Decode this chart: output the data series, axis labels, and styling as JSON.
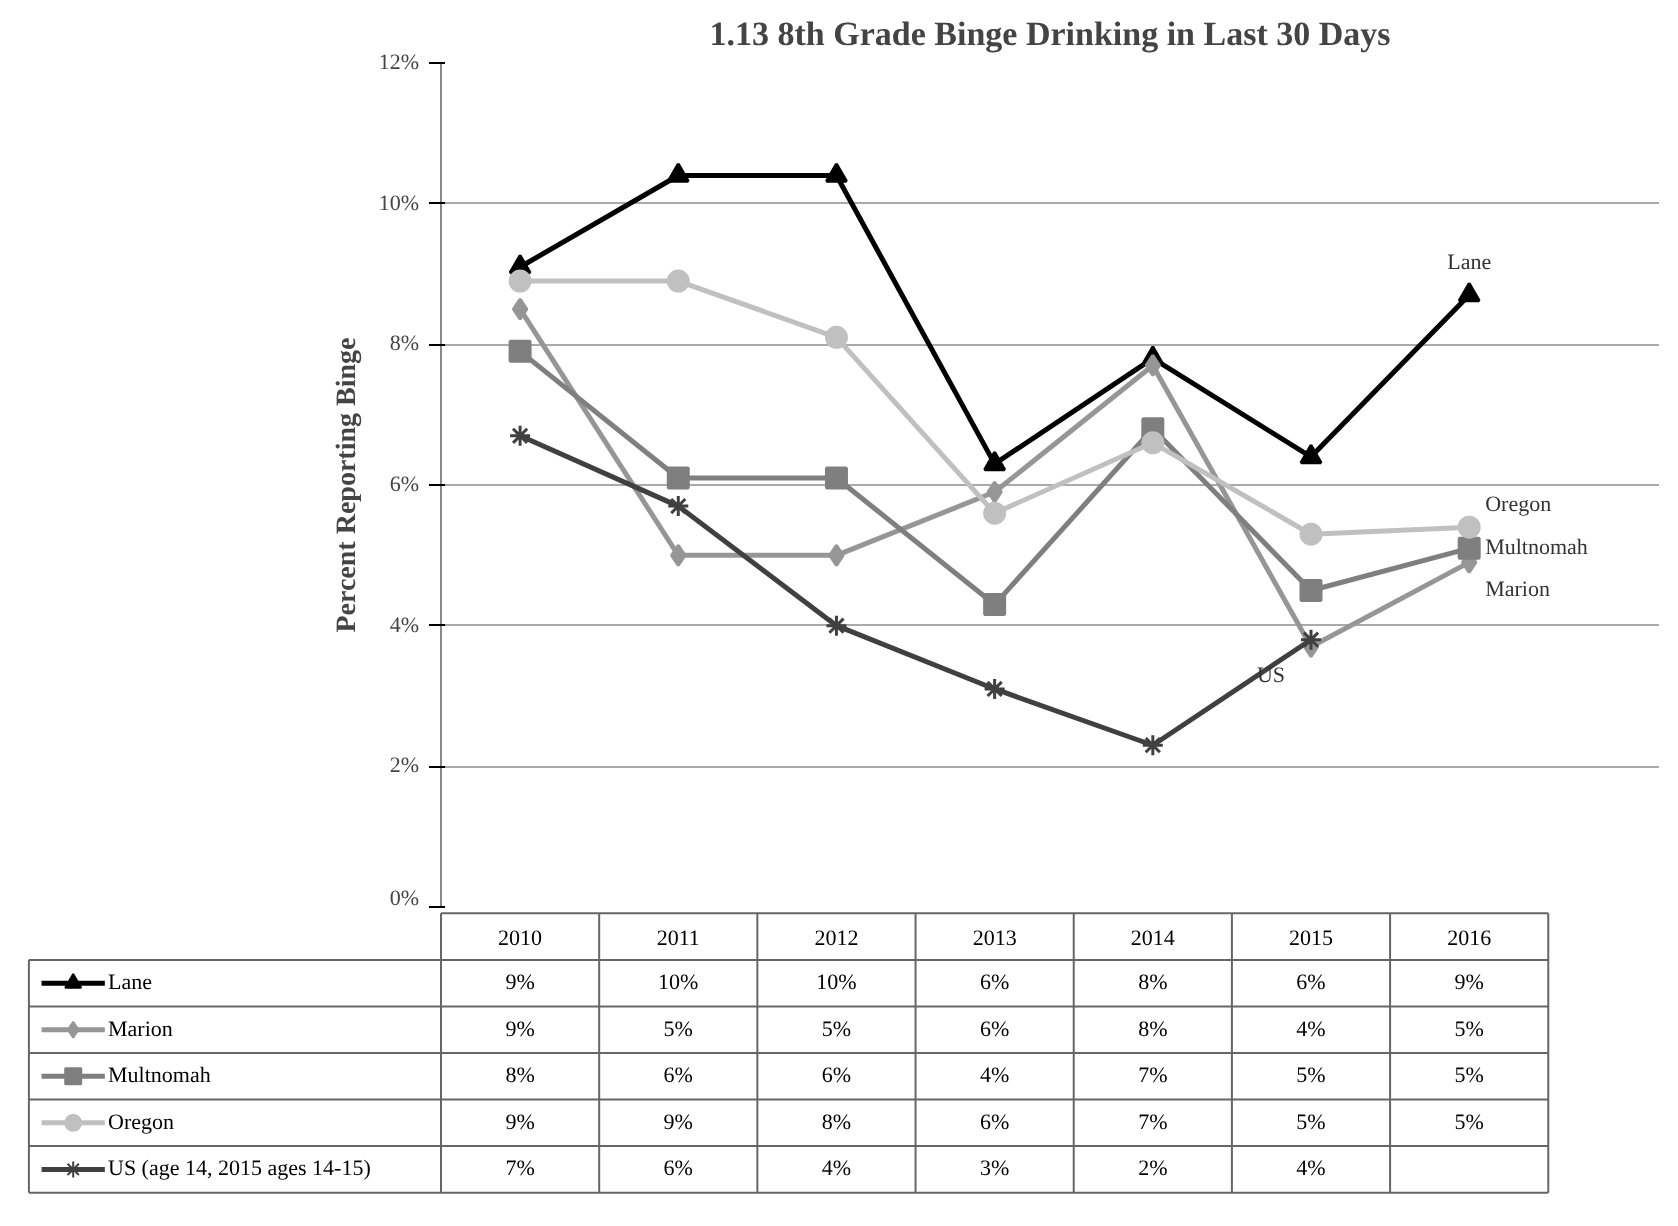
{
  "chart_data": {
    "type": "line",
    "title": "1.13 8th Grade Binge Drinking in Last 30 Days",
    "ylabel": "Percent Reporting Binge",
    "categories": [
      "2010",
      "2011",
      "2012",
      "2013",
      "2014",
      "2015",
      "2016"
    ],
    "ylim": [
      0,
      12
    ],
    "yticks": [
      {
        "value": 0,
        "label": "0%"
      },
      {
        "value": 2,
        "label": "2%"
      },
      {
        "value": 4,
        "label": "4%"
      },
      {
        "value": 6,
        "label": "6%"
      },
      {
        "value": 8,
        "label": "8%"
      },
      {
        "value": 10,
        "label": "10%"
      },
      {
        "value": 12,
        "label": "12%"
      }
    ],
    "grid": "y",
    "legend": "bottom",
    "series": [
      {
        "name": "Lane",
        "color": "#000000",
        "marker": "triangle",
        "values": [
          9.1,
          10.4,
          10.4,
          6.3,
          7.8,
          6.4,
          8.7
        ],
        "value_labels": [
          "9%",
          "10%",
          "10%",
          "6%",
          "8%",
          "6%",
          "9%"
        ]
      },
      {
        "name": "Marion",
        "color": "#969696",
        "marker": "diamond",
        "values": [
          8.5,
          5.0,
          5.0,
          5.9,
          7.7,
          3.7,
          4.9
        ],
        "value_labels": [
          "9%",
          "5%",
          "5%",
          "6%",
          "8%",
          "4%",
          "5%"
        ]
      },
      {
        "name": "Multnomah",
        "color": "#7f7f7f",
        "marker": "square",
        "values": [
          7.9,
          6.1,
          6.1,
          4.3,
          6.8,
          4.5,
          5.1
        ],
        "value_labels": [
          "8%",
          "6%",
          "6%",
          "4%",
          "7%",
          "5%",
          "5%"
        ]
      },
      {
        "name": "Oregon",
        "color": "#c0c0c0",
        "marker": "circle",
        "values": [
          8.9,
          8.9,
          8.1,
          5.6,
          6.6,
          5.3,
          5.4
        ],
        "value_labels": [
          "9%",
          "9%",
          "8%",
          "6%",
          "7%",
          "5%",
          "5%"
        ]
      },
      {
        "name": "US (age 14, 2015 ages 14-15)",
        "color": "#404040",
        "marker": "cross",
        "values": [
          6.7,
          5.7,
          4.0,
          3.1,
          2.3,
          3.8,
          null
        ],
        "value_labels": [
          "7%",
          "6%",
          "4%",
          "3%",
          "2%",
          "4%",
          null
        ]
      }
    ],
    "annotations": [
      {
        "text": "Lane",
        "x": "2016",
        "y": 8.7
      },
      {
        "text": "Oregon",
        "x": "2016",
        "y": 5.4
      },
      {
        "text": "Multnomah",
        "x": "2016",
        "y": 5.1
      },
      {
        "text": "Marion",
        "x": "2016",
        "y": 4.9
      },
      {
        "text": "US",
        "x": "2015",
        "y": 3.8
      }
    ]
  }
}
